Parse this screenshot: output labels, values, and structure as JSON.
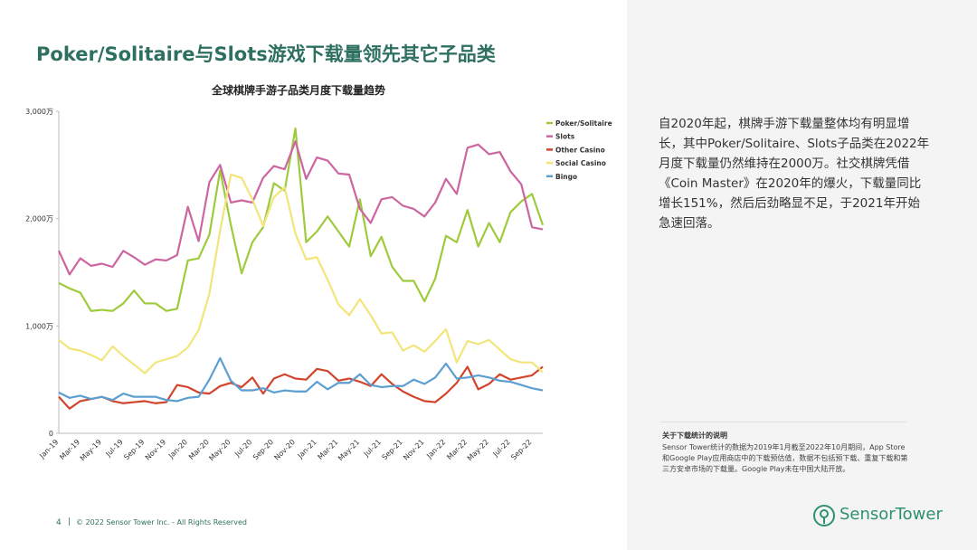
{
  "header": {
    "title": "Poker/Solitaire与Slots游戏下载量领先其它子品类"
  },
  "chart_data": {
    "type": "line",
    "title": "全球棋牌手游子品类月度下载量趋势",
    "categories": [
      "Jan-19",
      null,
      "Mar-19",
      null,
      "May-19",
      null,
      "Jul-19",
      null,
      "Sep-19",
      null,
      "Nov-19",
      null,
      "Jan-20",
      null,
      "Mar-20",
      null,
      "May-20",
      null,
      "Jul-20",
      null,
      "Sep-20",
      null,
      "Nov-20",
      null,
      "Jan-21",
      null,
      "Mar-21",
      null,
      "May-21",
      null,
      "Jul-21",
      null,
      "Sep-21",
      null,
      "Nov-21",
      null,
      "Jan-22",
      null,
      "Mar-22",
      null,
      "May-22",
      null,
      "Jul-22",
      null,
      "Sep-22",
      null
    ],
    "ylim": [
      0,
      3000
    ],
    "yticks": [
      0,
      {
        "value": 1000,
        "label": "1,000万"
      },
      {
        "value": 2000,
        "label": "2,000万"
      },
      {
        "value": 3000,
        "label": "3,000万"
      }
    ],
    "grid": false,
    "legend": "right",
    "series": [
      {
        "name": "Poker/Solitaire",
        "color": "#9dcb3b",
        "values": [
          1400,
          1350,
          1310,
          1140,
          1150,
          1140,
          1210,
          1330,
          1210,
          1210,
          1140,
          1160,
          1610,
          1630,
          1850,
          2450,
          1940,
          1490,
          1780,
          1920,
          2330,
          2260,
          2840,
          1780,
          1880,
          2020,
          1880,
          1740,
          2180,
          1650,
          1830,
          1550,
          1420,
          1420,
          1230,
          1440,
          1840,
          1780,
          2080,
          1740,
          1960,
          1780,
          2060,
          2160,
          2230,
          1940
        ]
      },
      {
        "name": "Slots",
        "color": "#cc65a0",
        "values": [
          1700,
          1480,
          1630,
          1560,
          1580,
          1550,
          1700,
          1640,
          1570,
          1620,
          1610,
          1660,
          2110,
          1790,
          2340,
          2500,
          2150,
          2170,
          2150,
          2380,
          2490,
          2460,
          2720,
          2370,
          2570,
          2540,
          2420,
          2410,
          2090,
          1960,
          2180,
          2200,
          2120,
          2090,
          2020,
          2150,
          2370,
          2230,
          2660,
          2690,
          2600,
          2620,
          2440,
          2320,
          1920,
          1900
        ]
      },
      {
        "name": "Other Casino",
        "color": "#d2442b",
        "values": [
          340,
          230,
          300,
          320,
          340,
          300,
          280,
          290,
          300,
          280,
          290,
          450,
          430,
          380,
          370,
          440,
          470,
          430,
          520,
          370,
          510,
          550,
          510,
          500,
          600,
          580,
          490,
          510,
          480,
          440,
          550,
          460,
          390,
          340,
          300,
          290,
          370,
          470,
          620,
          410,
          460,
          550,
          500,
          520,
          540,
          620
        ]
      },
      {
        "name": "Social Casino",
        "color": "#f2e57a",
        "values": [
          870,
          790,
          770,
          730,
          680,
          810,
          720,
          640,
          560,
          660,
          690,
          720,
          800,
          960,
          1300,
          1890,
          2410,
          2380,
          2180,
          1930,
          2200,
          2290,
          1860,
          1620,
          1640,
          1430,
          1200,
          1100,
          1250,
          1100,
          930,
          940,
          770,
          820,
          760,
          860,
          970,
          660,
          860,
          830,
          870,
          780,
          690,
          660,
          660,
          570
        ]
      },
      {
        "name": "Bingo",
        "color": "#5b9fd2",
        "values": [
          380,
          330,
          350,
          320,
          340,
          310,
          370,
          340,
          340,
          340,
          310,
          300,
          330,
          340,
          500,
          700,
          490,
          400,
          400,
          420,
          380,
          400,
          390,
          390,
          480,
          410,
          470,
          470,
          550,
          450,
          430,
          440,
          440,
          500,
          460,
          520,
          650,
          510,
          520,
          540,
          520,
          490,
          480,
          450,
          420,
          400
        ]
      }
    ]
  },
  "sidebar": {
    "text": "自2020年起，棋牌手游下载量整体均有明显增长，其中Poker/Solitaire、Slots子品类在2022年月度下载量仍然维持在2000万。社交棋牌凭借《Coin Master》在2020年的爆火，下载量同比增长151%，然后后劲略显不足，于2021年开始急速回落。"
  },
  "note": {
    "title": "关于下载统计的说明",
    "body": "Sensor Tower统计的数据为2019年1月截至2022年10月期间，App Store和Google Play应用商店中的下载预估值，数据不包括预下载、重复下载和第三方安卓市场的下载量。Google Play未在中国大陆开放。"
  },
  "footer": {
    "page": "4",
    "copyright": "© 2022 Sensor Tower Inc. - All Rights Reserved"
  },
  "logo": {
    "text": "SensorTower"
  }
}
